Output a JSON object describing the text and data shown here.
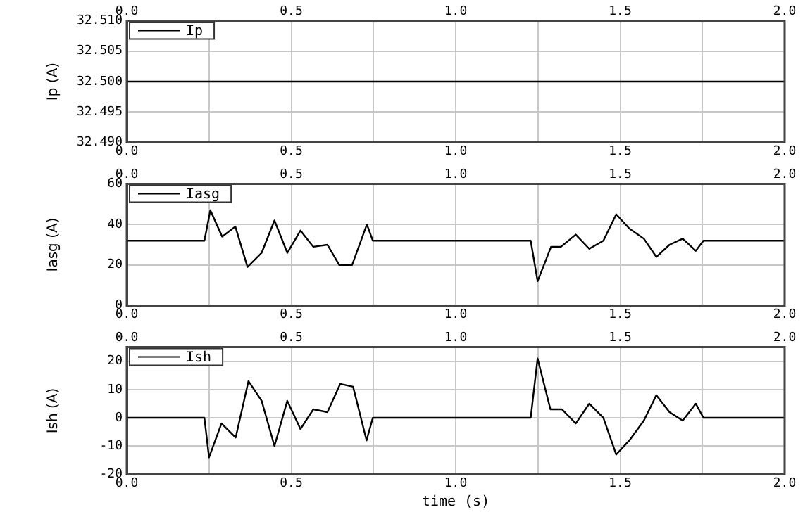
{
  "chart_data": [
    {
      "type": "line",
      "ylabel": "Ip (A)",
      "x": [
        0,
        2
      ],
      "series": [
        {
          "name": "Ip",
          "color": "#000000",
          "values": [
            32.5,
            32.5
          ]
        }
      ],
      "xlim": [
        0,
        2
      ],
      "xticks": [
        {
          "value": 0,
          "label": "0.0"
        },
        {
          "value": 0.25,
          "label": null
        },
        {
          "value": 0.5,
          "label": "0.5"
        },
        {
          "value": 0.75,
          "label": null
        },
        {
          "value": 1,
          "label": "1.0"
        },
        {
          "value": 1.25,
          "label": null
        },
        {
          "value": 1.5,
          "label": "1.5"
        },
        {
          "value": 1.75,
          "label": null
        },
        {
          "value": 2,
          "label": "2.0"
        }
      ],
      "x2lim": [
        0,
        2
      ],
      "x2ticks": [
        {
          "value": 0,
          "label": "0.0"
        },
        {
          "value": 0.5,
          "label": "0.5"
        },
        {
          "value": 1,
          "label": "1.0"
        },
        {
          "value": 1.5,
          "label": "1.5"
        },
        {
          "value": 2,
          "label": "2.0"
        }
      ],
      "ylim": [
        32.49,
        32.51
      ],
      "yticks": [
        {
          "value": 32.49,
          "label": "32.490"
        },
        {
          "value": 32.495,
          "label": "32.495"
        },
        {
          "value": 32.5,
          "label": "32.500"
        },
        {
          "value": 32.505,
          "label": "32.505"
        },
        {
          "value": 32.51,
          "label": "32.510"
        }
      ],
      "grid": true,
      "legend": "top left",
      "marker": "none",
      "line_style": "solid"
    },
    {
      "type": "line",
      "ylabel": "Iasg (A)",
      "x": [
        0,
        0.236,
        0.254,
        0.29,
        0.33,
        0.367,
        0.41,
        0.449,
        0.488,
        0.528,
        0.567,
        0.61,
        0.646,
        0.685,
        0.73,
        0.748,
        1.228,
        1.249,
        1.29,
        1.32,
        1.365,
        1.406,
        1.449,
        1.488,
        1.528,
        1.572,
        1.61,
        1.65,
        1.69,
        1.73,
        1.753,
        2.0
      ],
      "series": [
        {
          "name": "Iasg",
          "color": "#000000",
          "values": [
            32,
            32,
            47,
            34,
            39,
            19,
            26,
            42,
            26,
            37,
            29,
            30,
            20,
            20,
            40,
            32,
            32,
            12,
            29,
            29,
            35,
            28,
            32,
            45,
            38,
            33,
            24,
            30,
            33,
            27,
            32,
            32
          ]
        }
      ],
      "xlim": [
        0,
        2
      ],
      "xticks": [
        {
          "value": 0,
          "label": "0.0"
        },
        {
          "value": 0.25,
          "label": null
        },
        {
          "value": 0.5,
          "label": "0.5"
        },
        {
          "value": 0.75,
          "label": null
        },
        {
          "value": 1,
          "label": "1.0"
        },
        {
          "value": 1.25,
          "label": null
        },
        {
          "value": 1.5,
          "label": "1.5"
        },
        {
          "value": 1.75,
          "label": null
        },
        {
          "value": 2,
          "label": "2.0"
        }
      ],
      "x2lim": [
        0,
        2
      ],
      "x2ticks": [
        {
          "value": 0,
          "label": "0.0"
        },
        {
          "value": 0.5,
          "label": "0.5"
        },
        {
          "value": 1,
          "label": "1.0"
        },
        {
          "value": 1.5,
          "label": "1.5"
        },
        {
          "value": 2,
          "label": "2.0"
        }
      ],
      "ylim": [
        0,
        60
      ],
      "yticks": [
        0,
        20,
        40,
        60
      ],
      "grid": true,
      "legend": "top left",
      "marker": "none",
      "line_style": "solid"
    },
    {
      "type": "line",
      "xlabel": "time (s)",
      "ylabel": "Ish (A)",
      "x": [
        0,
        0.236,
        0.25,
        0.288,
        0.331,
        0.37,
        0.41,
        0.449,
        0.488,
        0.528,
        0.567,
        0.61,
        0.649,
        0.688,
        0.729,
        0.748,
        1.228,
        1.249,
        1.288,
        1.323,
        1.365,
        1.406,
        1.449,
        1.488,
        1.528,
        1.572,
        1.61,
        1.65,
        1.69,
        1.73,
        1.753,
        2.0
      ],
      "series": [
        {
          "name": "Ish",
          "color": "#000000",
          "values": [
            0,
            0,
            -14,
            -2,
            -7,
            13,
            6,
            -10,
            6,
            -4,
            3,
            2,
            12,
            11,
            -8,
            0,
            0,
            21,
            3,
            3,
            -2,
            5,
            0,
            -13,
            -8,
            -1,
            8,
            2,
            -1,
            5,
            0,
            0
          ]
        }
      ],
      "xlim": [
        0,
        2
      ],
      "xticks": [
        {
          "value": 0,
          "label": "0.0"
        },
        {
          "value": 0.25,
          "label": null
        },
        {
          "value": 0.5,
          "label": "0.5"
        },
        {
          "value": 0.75,
          "label": null
        },
        {
          "value": 1,
          "label": "1.0"
        },
        {
          "value": 1.25,
          "label": null
        },
        {
          "value": 1.5,
          "label": "1.5"
        },
        {
          "value": 1.75,
          "label": null
        },
        {
          "value": 2,
          "label": "2.0"
        }
      ],
      "x2lim": [
        0,
        2
      ],
      "x2ticks": [
        {
          "value": 0,
          "label": "0.0"
        },
        {
          "value": 0.5,
          "label": "0.5"
        },
        {
          "value": 1,
          "label": "1.0"
        },
        {
          "value": 1.5,
          "label": "1.5"
        },
        {
          "value": 2,
          "label": "2.0"
        }
      ],
      "ylim": [
        -20,
        25
      ],
      "yticks": [
        -20,
        -10,
        0,
        10,
        20
      ],
      "grid": true,
      "legend": "top left",
      "marker": "none",
      "line_style": "solid"
    }
  ]
}
